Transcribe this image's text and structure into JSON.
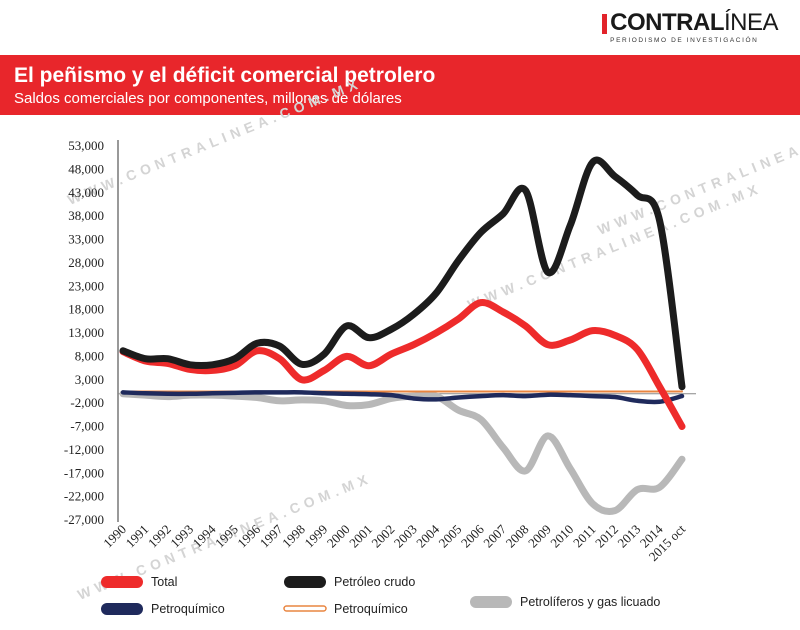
{
  "brand": {
    "name_bold": "CONTRAL",
    "name_light": "ÍNEA",
    "tagline": "PERIODISMO DE INVESTIGACIÓN",
    "watermark": "WWW.CONTRALINEA.COM.MX"
  },
  "colors": {
    "banner": "#e8262b",
    "total": "#ee2b2b",
    "crudo": "#1c1c1c",
    "petroquimico_navy": "#1f2a5c",
    "petroquimico_orange": "#e98540",
    "petroliferos": "#b8b8b8"
  },
  "chart_data": {
    "type": "line",
    "title": "El peñismo y el déficit comercial petrolero",
    "subtitle": "Saldos comerciales por componentes, millones de dólares",
    "xlabel": "",
    "ylabel": "",
    "ylim": [
      -27000,
      53000
    ],
    "yticks": [
      53000,
      48000,
      43000,
      38000,
      33000,
      28000,
      23000,
      18000,
      13000,
      8000,
      3000,
      -2000,
      -7000,
      -12000,
      -17000,
      -22000,
      -27000
    ],
    "ytick_labels": [
      "53,000",
      "48,000",
      "43,000",
      "38,000",
      "33,000",
      "28,000",
      "23,000",
      "18,000",
      "13,000",
      "8,000",
      "3,000",
      "-2,000",
      "-7,000",
      "-12,000",
      "-17,000",
      "-22,000",
      "-27,000"
    ],
    "categories": [
      "1990",
      "1991",
      "1992",
      "1993",
      "1994",
      "1995",
      "1996",
      "1997",
      "1998",
      "1999",
      "2000",
      "2001",
      "2002",
      "2003",
      "2004",
      "2005",
      "2006",
      "2007",
      "2008",
      "2009",
      "2010",
      "2011",
      "2012",
      "2013",
      "2014",
      "2015 oct"
    ],
    "grid": false,
    "legend_position": "bottom",
    "series": [
      {
        "name": "Total",
        "key": "total",
        "values": [
          9000,
          7000,
          6500,
          5200,
          5000,
          6000,
          9200,
          7500,
          3000,
          5000,
          8000,
          6000,
          8500,
          10500,
          13000,
          16000,
          19500,
          17500,
          14500,
          10500,
          11500,
          13500,
          12500,
          9500,
          1500,
          -7000
        ]
      },
      {
        "name": "Petróleo crudo",
        "key": "crudo",
        "values": [
          9200,
          7500,
          7500,
          6200,
          6200,
          7500,
          10800,
          10200,
          6300,
          8500,
          14500,
          12000,
          13800,
          17000,
          21500,
          28500,
          34500,
          38500,
          43500,
          26000,
          36000,
          49500,
          46500,
          42500,
          37000,
          1500
        ]
      },
      {
        "name": "Petroquímico",
        "key": "petroquimico_navy",
        "values": [
          300,
          100,
          0,
          0,
          100,
          200,
          300,
          300,
          300,
          100,
          0,
          -100,
          -300,
          -1000,
          -1200,
          -800,
          -500,
          -300,
          -500,
          -200,
          -300,
          -500,
          -700,
          -1500,
          -1700,
          -500
        ]
      },
      {
        "name": "Petroquímico",
        "key": "petroquimico_orange",
        "values": [
          500,
          500,
          500,
          500,
          500,
          500,
          500,
          500,
          500,
          500,
          500,
          500,
          500,
          500,
          500,
          500,
          500,
          500,
          500,
          500,
          500,
          500,
          500,
          500,
          500,
          500
        ]
      },
      {
        "name": "Petrolíferos y gas licuado",
        "key": "petroliferos",
        "values": [
          0,
          -300,
          -600,
          -300,
          -300,
          -500,
          -800,
          -1500,
          -1300,
          -1500,
          -2500,
          -2300,
          -1000,
          -500,
          -500,
          -3500,
          -5500,
          -11500,
          -16500,
          -9000,
          -16000,
          -23500,
          -25000,
          -20500,
          -20000,
          -14000
        ]
      }
    ],
    "legend": [
      {
        "label": "Total",
        "key": "total"
      },
      {
        "label": "Petróleo crudo",
        "key": "crudo"
      },
      {
        "label": "Petroquímico",
        "key": "petroquimico_navy"
      },
      {
        "label": "Petroquímico",
        "key": "petroquimico_orange"
      },
      {
        "label": "Petrolíferos y gas licuado",
        "key": "petroliferos"
      }
    ]
  }
}
